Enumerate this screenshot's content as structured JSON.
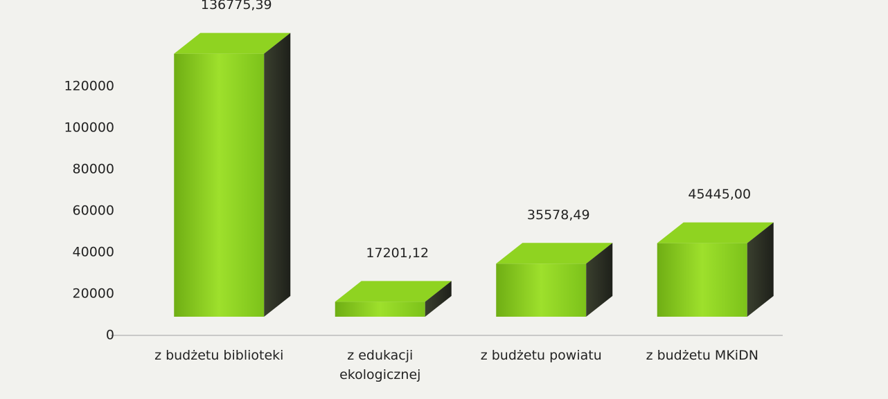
{
  "chart_data": {
    "type": "bar3d",
    "categories": [
      "z budżetu biblioteki",
      "z edukacji ekologicznej",
      "z budżetu powiatu",
      "z budżetu MKiDN"
    ],
    "values": [
      136775.39,
      17201.12,
      35578.49,
      45445.0
    ],
    "value_labels": [
      "136775,39",
      "17201,12",
      "35578,49",
      "45445,00"
    ],
    "color": "#8fd321",
    "ylim": [
      0,
      140000
    ],
    "yticks": [
      0,
      20000,
      40000,
      60000,
      80000,
      100000,
      120000
    ]
  }
}
